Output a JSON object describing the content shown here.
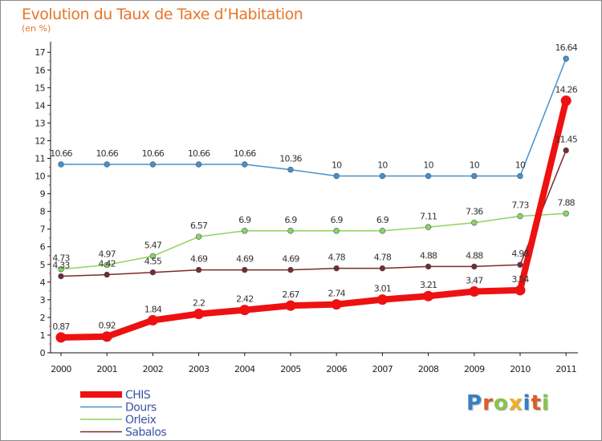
{
  "chart_data": {
    "type": "line",
    "title": "Evolution du Taux de Taxe d’Habitation",
    "subtitle": "(en %)",
    "x": [
      "2000",
      "2001",
      "2002",
      "2003",
      "2004",
      "2005",
      "2006",
      "2007",
      "2008",
      "2009",
      "2010",
      "2011"
    ],
    "ylim": [
      0,
      17.6
    ],
    "yticks": [
      0,
      1,
      2,
      3,
      4,
      5,
      6,
      7,
      8,
      9,
      10,
      11,
      12,
      13,
      14,
      15,
      16,
      17
    ],
    "grid": false,
    "legend_position": "bottom-left",
    "series": [
      {
        "name": "CHIS",
        "color": "#ee1111",
        "values": [
          0.87,
          0.92,
          1.84,
          2.2,
          2.42,
          2.67,
          2.74,
          3.01,
          3.21,
          3.47,
          3.54,
          14.26
        ],
        "labels": [
          "0.87",
          "0.92",
          "1.84",
          "2.2",
          "2.42",
          "2.67",
          "2.74",
          "3.01",
          "3.21",
          "3.47",
          "3.54",
          "14.26"
        ]
      },
      {
        "name": "Dours",
        "color": "#4a90c8",
        "values": [
          10.66,
          10.66,
          10.66,
          10.66,
          10.66,
          10.36,
          10,
          10,
          10,
          10,
          10,
          16.64
        ],
        "labels": [
          "10.66",
          "10.66",
          "10.66",
          "10.66",
          "10.66",
          "10.36",
          "10",
          "10",
          "10",
          "10",
          "10",
          "16.64"
        ]
      },
      {
        "name": "Orleix",
        "color": "#8fd45a",
        "values": [
          4.73,
          4.97,
          5.47,
          6.57,
          6.9,
          6.9,
          6.9,
          6.9,
          7.11,
          7.36,
          7.73,
          7.88
        ],
        "labels": [
          "4.73",
          "4.97",
          "5.47",
          "6.57",
          "6.9",
          "6.9",
          "6.9",
          "6.9",
          "7.11",
          "7.36",
          "7.73",
          "7.88"
        ]
      },
      {
        "name": "Sabalos",
        "color": "#7a2a2a",
        "values": [
          4.33,
          4.42,
          4.55,
          4.69,
          4.69,
          4.69,
          4.78,
          4.78,
          4.88,
          4.88,
          4.98,
          11.45
        ],
        "labels": [
          "4.33",
          "4.42",
          "4.55",
          "4.69",
          "4.69",
          "4.69",
          "4.78",
          "4.78",
          "4.88",
          "4.88",
          "4.98",
          "11.45"
        ]
      }
    ]
  },
  "logo": {
    "letters": [
      {
        "ch": "P",
        "color": "#3a7fc1"
      },
      {
        "ch": "r",
        "color": "#e05a2a"
      },
      {
        "ch": "o",
        "color": "#8bc34a"
      },
      {
        "ch": "x",
        "color": "#f2b01e"
      },
      {
        "ch": "i",
        "color": "#3a7fc1"
      },
      {
        "ch": "t",
        "color": "#e05a2a"
      },
      {
        "ch": "i",
        "color": "#8bc34a"
      }
    ]
  }
}
